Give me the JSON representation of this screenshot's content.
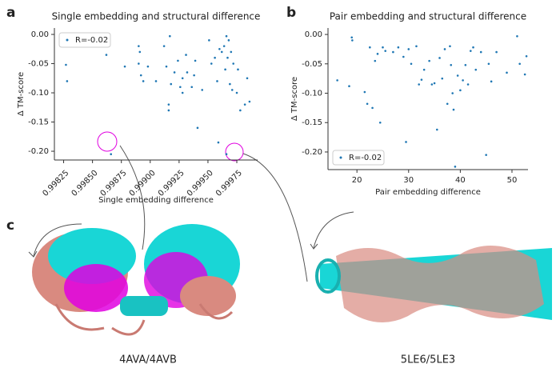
{
  "panels": [
    "a",
    "b",
    "c"
  ],
  "structures": [
    "4AVA/4AVB",
    "5LE6/5LE3"
  ],
  "chart_data": [
    {
      "type": "scatter",
      "title": "Single embedding and structural difference",
      "xlabel": "Single embedding difference",
      "ylabel": "Δ TM-score",
      "xlim": [
        0.99817,
        0.99993
      ],
      "ylim": [
        -0.215,
        0.011
      ],
      "xticks": [
        0.99825,
        {
          "value": 0.9985,
          "label": "0.99850"
        },
        0.99875,
        {
          "value": 0.999,
          "label": "0.99900"
        },
        0.99925,
        {
          "value": 0.9995,
          "label": "0.99950"
        },
        0.99975
      ],
      "yticks": [
        {
          "value": 0,
          "label": "0.00"
        },
        -0.05,
        {
          "value": -0.1,
          "label": "-0.10"
        },
        -0.15,
        {
          "value": -0.2,
          "label": "-0.20"
        }
      ],
      "legend": "upper left",
      "xtick_rotation": 45,
      "x": [
        0.99827,
        0.99828,
        0.99862,
        0.99866,
        0.99878,
        0.9989,
        0.9989,
        0.99891,
        0.99892,
        0.99894,
        0.99898,
        0.99905,
        0.99912,
        0.99914,
        0.99916,
        0.99916,
        0.99917,
        0.99918,
        0.99921,
        0.99924,
        0.99926,
        0.99928,
        0.99928,
        0.99931,
        0.99932,
        0.99936,
        0.99938,
        0.99939,
        0.99941,
        0.99945,
        0.99951,
        0.99953,
        0.99956,
        0.99958,
        0.99959,
        0.9996,
        0.99962,
        0.99964,
        0.99965,
        0.99966,
        0.99966,
        0.99967,
        0.99968,
        0.99969,
        0.9997,
        0.99971,
        0.99972,
        0.99975,
        0.99976,
        0.99978,
        0.99982,
        0.99984,
        0.99986
      ],
      "series": [
        {
          "name": "R=-0.02",
          "color": "#1f77b4",
          "values": [
            -0.052,
            -0.08,
            -0.035,
            -0.205,
            -0.055,
            -0.02,
            -0.05,
            -0.03,
            -0.07,
            -0.08,
            -0.055,
            -0.08,
            -0.02,
            -0.055,
            -0.12,
            -0.13,
            -0.003,
            -0.085,
            -0.065,
            -0.045,
            -0.09,
            -0.1,
            -0.075,
            -0.035,
            -0.065,
            -0.09,
            -0.07,
            -0.045,
            -0.16,
            -0.095,
            -0.01,
            -0.05,
            -0.04,
            -0.08,
            -0.185,
            -0.025,
            -0.03,
            -0.02,
            -0.06,
            -0.003,
            -0.205,
            -0.04,
            -0.01,
            -0.085,
            -0.03,
            -0.095,
            -0.05,
            -0.1,
            -0.06,
            -0.13,
            -0.12,
            -0.075,
            -0.115
          ]
        }
      ]
    },
    {
      "type": "scatter",
      "title": "Pair embedding and structural difference",
      "xlabel": "Pair embedding difference",
      "ylabel": "Δ TM-score",
      "xlim": [
        14.4,
        53.1
      ],
      "ylim": [
        -0.23,
        0.011
      ],
      "xticks": [
        20,
        30,
        40,
        50
      ],
      "yticks": [
        {
          "value": 0,
          "label": "0.00"
        },
        -0.05,
        {
          "value": -0.1,
          "label": "-0.10"
        },
        -0.15,
        {
          "value": -0.2,
          "label": "-0.20"
        }
      ],
      "legend": "lower left",
      "xtick_rotation": 0,
      "x": [
        16.2,
        18.5,
        19,
        19.1,
        21.5,
        22,
        22.5,
        23,
        23.5,
        24,
        24.5,
        25,
        25.5,
        27,
        28,
        29,
        29.5,
        30,
        30.5,
        31.5,
        32,
        32.5,
        33,
        34,
        34.5,
        35,
        35.5,
        36,
        36.5,
        37,
        37.5,
        38,
        38.2,
        38.5,
        38.7,
        39,
        39.5,
        40,
        40.5,
        41,
        41.5,
        42,
        42.5,
        43,
        44,
        45,
        45.5,
        46,
        47,
        49,
        51,
        51.5,
        52.5,
        52.8
      ],
      "series": [
        {
          "name": "R=-0.02",
          "color": "#1f77b4",
          "values": [
            -0.078,
            -0.088,
            -0.005,
            -0.01,
            -0.098,
            -0.118,
            -0.022,
            -0.125,
            -0.045,
            -0.033,
            -0.15,
            -0.022,
            -0.028,
            -0.03,
            -0.022,
            -0.038,
            -0.183,
            -0.025,
            -0.05,
            -0.02,
            -0.085,
            -0.077,
            -0.06,
            -0.045,
            -0.085,
            -0.083,
            -0.162,
            -0.04,
            -0.075,
            -0.025,
            -0.118,
            -0.02,
            -0.052,
            -0.1,
            -0.128,
            -0.225,
            -0.07,
            -0.095,
            -0.078,
            -0.052,
            -0.085,
            -0.028,
            -0.022,
            -0.06,
            -0.03,
            -0.205,
            -0.05,
            -0.08,
            -0.03,
            -0.065,
            -0.003,
            -0.05,
            -0.068,
            -0.037
          ]
        }
      ]
    }
  ]
}
